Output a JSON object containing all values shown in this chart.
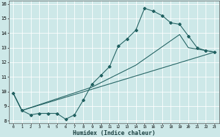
{
  "xlabel": "Humidex (Indice chaleur)",
  "xlim": [
    -0.5,
    23.5
  ],
  "ylim": [
    7.8,
    16.2
  ],
  "xticks": [
    0,
    1,
    2,
    3,
    4,
    5,
    6,
    7,
    8,
    9,
    10,
    11,
    12,
    13,
    14,
    15,
    16,
    17,
    18,
    19,
    20,
    21,
    22,
    23
  ],
  "yticks": [
    8,
    9,
    10,
    11,
    12,
    13,
    14,
    15,
    16
  ],
  "bg_color": "#cde8e8",
  "line_color": "#206060",
  "grid_color": "#ffffff",
  "line1_x": [
    0,
    1,
    2,
    3,
    4,
    5,
    6,
    7,
    8,
    9,
    10,
    11,
    12,
    13,
    14,
    15,
    16,
    17,
    18,
    19,
    20,
    21,
    22,
    23
  ],
  "line1_y": [
    9.9,
    8.7,
    8.4,
    8.5,
    8.5,
    8.5,
    8.1,
    8.4,
    9.4,
    10.5,
    11.1,
    11.7,
    13.1,
    13.6,
    14.2,
    15.7,
    15.5,
    15.2,
    14.7,
    14.6,
    13.8,
    13.0,
    12.8,
    12.7
  ],
  "line2_x": [
    0,
    1,
    23
  ],
  "line2_y": [
    9.9,
    8.7,
    12.7
  ],
  "line3_x": [
    0,
    1,
    9,
    14,
    19,
    20,
    23
  ],
  "line3_y": [
    9.9,
    8.7,
    10.3,
    11.8,
    13.9,
    13.0,
    12.7
  ]
}
